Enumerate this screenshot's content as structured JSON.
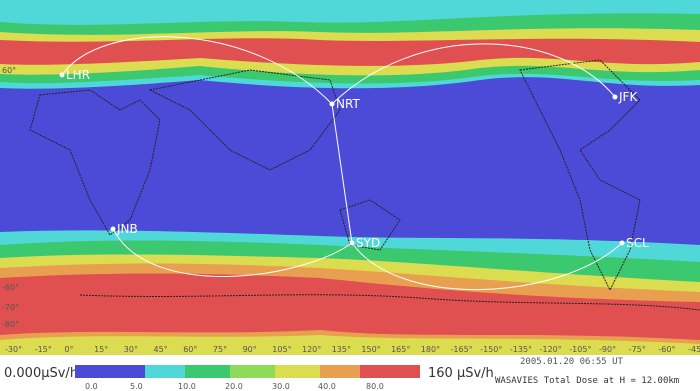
{
  "map": {
    "airports": [
      "LHR",
      "NRT",
      "JFK",
      "JNB",
      "SYD",
      "SCL"
    ],
    "lat_labels": [
      "60°",
      "-60°",
      "-70°",
      "-80°"
    ],
    "lon_labels": [
      "-30°",
      "-15°",
      "0°",
      "15°",
      "30°",
      "45°",
      "60°",
      "75°",
      "90°",
      "105°",
      "120°",
      "135°",
      "150°",
      "165°",
      "180°",
      "-165°",
      "-150°",
      "-135°",
      "-120°",
      "-105°",
      "-90°",
      "-75°",
      "-60°",
      "-45°"
    ]
  },
  "scale": {
    "min_label": "0.000µSv/h",
    "max_label": "160 µSv/h",
    "ticks": [
      "0.0",
      "5.0",
      "10.0",
      "20.0",
      "30.0",
      "40.0",
      "80.0"
    ],
    "colors": [
      "#4b4bd8",
      "#50d8d8",
      "#3cc86e",
      "#8cdc5a",
      "#dcdc50",
      "#e8a050",
      "#e05050"
    ]
  },
  "footer": {
    "time": "2005.01.20 06:55 UT",
    "caption": "WASAVIES Total Dose at H = 12.00km"
  }
}
